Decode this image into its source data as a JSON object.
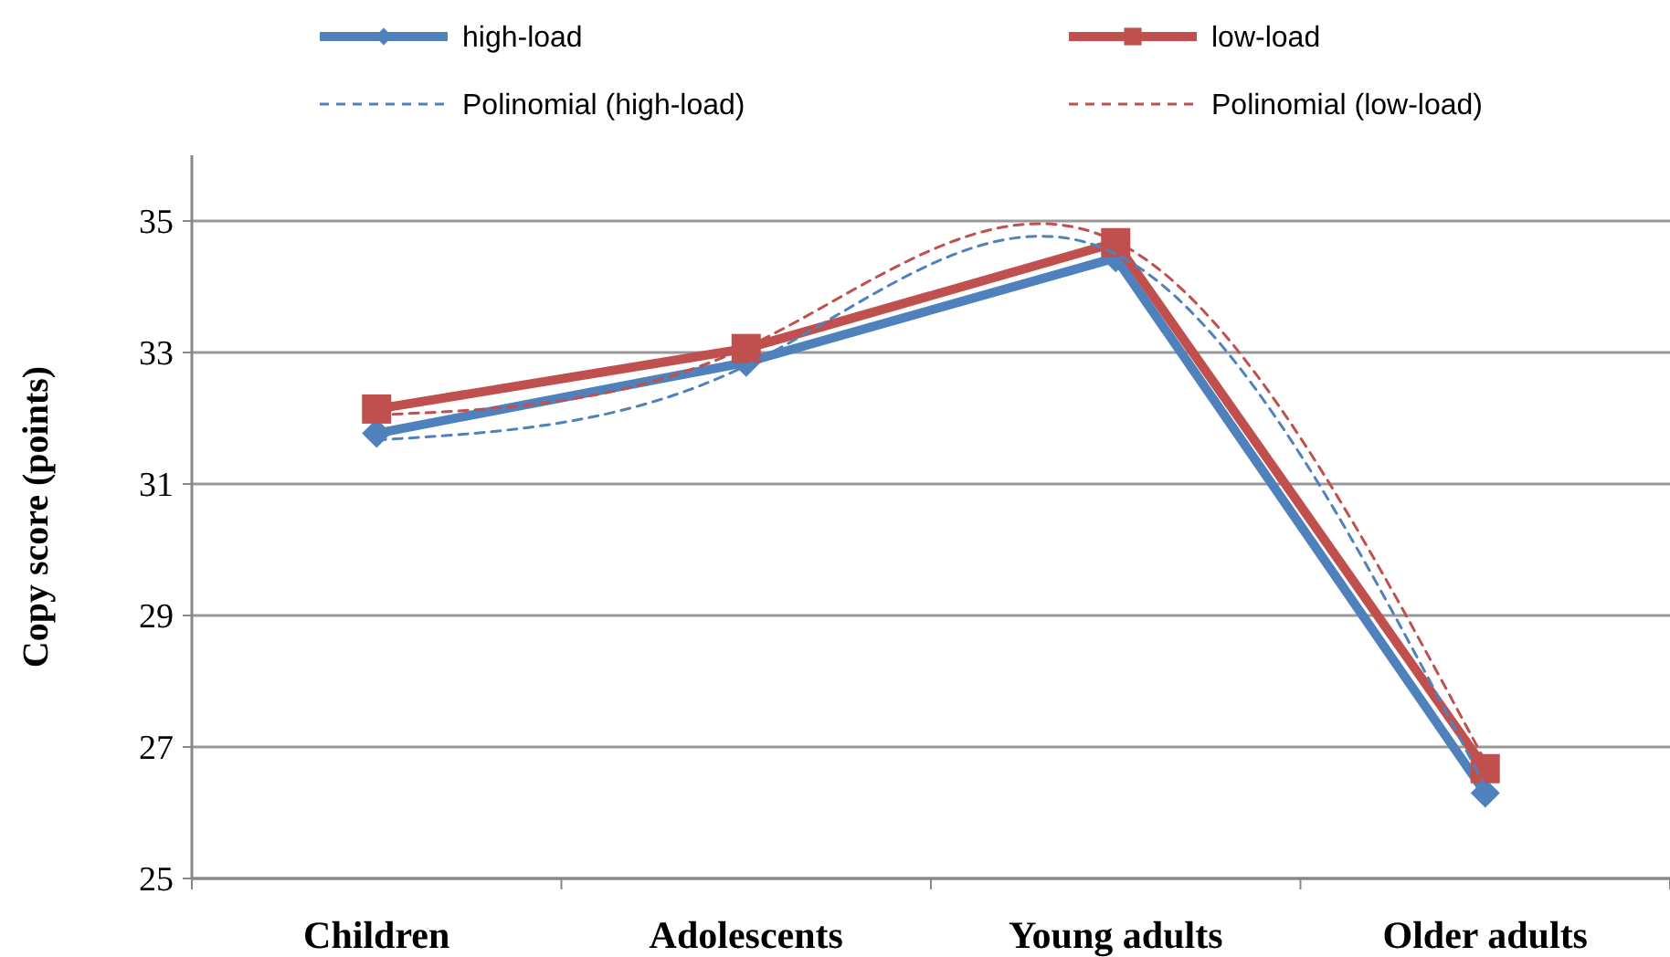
{
  "chart_data": {
    "type": "line",
    "ylabel": "Copy score (points)",
    "categories": [
      "Children",
      "Adolescents",
      "Young adults",
      "Older adults"
    ],
    "ylim": [
      25,
      36
    ],
    "yticks": [
      25,
      27,
      29,
      31,
      33,
      35
    ],
    "grid": "y",
    "legend": "top",
    "series": [
      {
        "name": "high-load",
        "color": "#4f81bd",
        "values": [
          31.77,
          32.85,
          34.44,
          26.3
        ],
        "marker": "diamond",
        "line_style": "solid"
      },
      {
        "name": "low-load",
        "color": "#c0504d",
        "values": [
          32.14,
          33.06,
          34.67,
          26.67
        ],
        "marker": "square",
        "line_style": "solid"
      },
      {
        "name": "Polinomial (high-load)",
        "color": "#4f81bd",
        "marker": "none",
        "line_style": "dashed",
        "values": [
          31.67,
          32.8,
          34.5,
          26.4
        ]
      },
      {
        "name": "Polinomial (low-load)",
        "color": "#c0504d",
        "marker": "none",
        "line_style": "dashed",
        "values": [
          32.05,
          33.08,
          34.69,
          26.78
        ]
      }
    ]
  }
}
